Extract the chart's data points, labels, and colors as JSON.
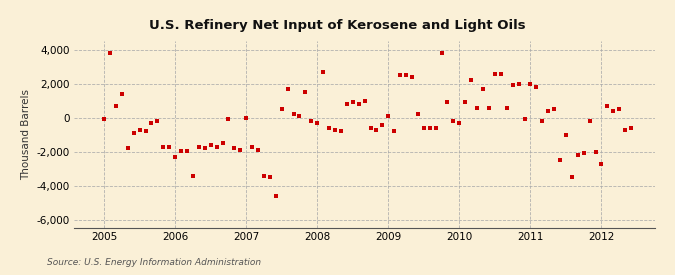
{
  "title": "U.S. Refinery Net Input of Kerosene and Light Oils",
  "ylabel": "Thousand Barrels",
  "source": "Source: U.S. Energy Information Administration",
  "background_color": "#FAF0D7",
  "plot_bg_color": "#FAF0D7",
  "marker_color": "#CC0000",
  "ylim": [
    -6500,
    4500
  ],
  "yticks": [
    -6000,
    -4000,
    -2000,
    0,
    2000,
    4000
  ],
  "ytick_labels": [
    "-6,000",
    "-4,000",
    "-2,000",
    "0",
    "2,000",
    "4,000"
  ],
  "xlim_start": 2004.58,
  "xlim_end": 2012.75,
  "xticks": [
    2005,
    2006,
    2007,
    2008,
    2009,
    2010,
    2011,
    2012
  ],
  "data": [
    [
      2005.0,
      -100
    ],
    [
      2005.083,
      3800
    ],
    [
      2005.167,
      700
    ],
    [
      2005.25,
      1400
    ],
    [
      2005.333,
      -1800
    ],
    [
      2005.417,
      -900
    ],
    [
      2005.5,
      -700
    ],
    [
      2005.583,
      -800
    ],
    [
      2005.667,
      -300
    ],
    [
      2005.75,
      -200
    ],
    [
      2005.833,
      -1700
    ],
    [
      2005.917,
      -1700
    ],
    [
      2006.0,
      -2300
    ],
    [
      2006.083,
      -1950
    ],
    [
      2006.167,
      -1950
    ],
    [
      2006.25,
      -3400
    ],
    [
      2006.333,
      -1700
    ],
    [
      2006.417,
      -1800
    ],
    [
      2006.5,
      -1600
    ],
    [
      2006.583,
      -1700
    ],
    [
      2006.667,
      -1500
    ],
    [
      2006.75,
      -100
    ],
    [
      2006.833,
      -1800
    ],
    [
      2006.917,
      -1900
    ],
    [
      2007.0,
      0
    ],
    [
      2007.083,
      -1700
    ],
    [
      2007.167,
      -1900
    ],
    [
      2007.25,
      -3400
    ],
    [
      2007.333,
      -3500
    ],
    [
      2007.417,
      -4600
    ],
    [
      2007.5,
      500
    ],
    [
      2007.583,
      1700
    ],
    [
      2007.667,
      200
    ],
    [
      2007.75,
      100
    ],
    [
      2007.833,
      1500
    ],
    [
      2007.917,
      -200
    ],
    [
      2008.0,
      -300
    ],
    [
      2008.083,
      2700
    ],
    [
      2008.167,
      -600
    ],
    [
      2008.25,
      -700
    ],
    [
      2008.333,
      -800
    ],
    [
      2008.417,
      800
    ],
    [
      2008.5,
      900
    ],
    [
      2008.583,
      800
    ],
    [
      2008.667,
      1000
    ],
    [
      2008.75,
      -600
    ],
    [
      2008.833,
      -700
    ],
    [
      2008.917,
      -400
    ],
    [
      2009.0,
      100
    ],
    [
      2009.083,
      -800
    ],
    [
      2009.167,
      2500
    ],
    [
      2009.25,
      2500
    ],
    [
      2009.333,
      2400
    ],
    [
      2009.417,
      200
    ],
    [
      2009.5,
      -600
    ],
    [
      2009.583,
      -600
    ],
    [
      2009.667,
      -600
    ],
    [
      2009.75,
      3800
    ],
    [
      2009.833,
      900
    ],
    [
      2009.917,
      -200
    ],
    [
      2010.0,
      -300
    ],
    [
      2010.083,
      900
    ],
    [
      2010.167,
      2200
    ],
    [
      2010.25,
      600
    ],
    [
      2010.333,
      1700
    ],
    [
      2010.417,
      600
    ],
    [
      2010.5,
      2600
    ],
    [
      2010.583,
      2600
    ],
    [
      2010.667,
      600
    ],
    [
      2010.75,
      1900
    ],
    [
      2010.833,
      2000
    ],
    [
      2010.917,
      -100
    ],
    [
      2011.0,
      2000
    ],
    [
      2011.083,
      1800
    ],
    [
      2011.167,
      -200
    ],
    [
      2011.25,
      400
    ],
    [
      2011.333,
      500
    ],
    [
      2011.417,
      -2500
    ],
    [
      2011.5,
      -1000
    ],
    [
      2011.583,
      -3500
    ],
    [
      2011.667,
      -2200
    ],
    [
      2011.75,
      -2100
    ],
    [
      2011.833,
      -200
    ],
    [
      2011.917,
      -2000
    ],
    [
      2012.0,
      -2700
    ],
    [
      2012.083,
      700
    ],
    [
      2012.167,
      400
    ],
    [
      2012.25,
      500
    ],
    [
      2012.333,
      -700
    ],
    [
      2012.417,
      -600
    ]
  ]
}
